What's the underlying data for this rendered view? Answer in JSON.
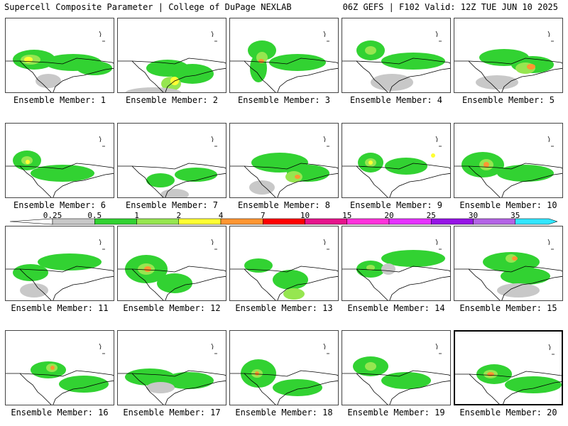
{
  "header": {
    "left": "Supercell Composite Parameter | College of DuPage NEXLAB",
    "right": "06Z GEFS | F102 Valid: 12Z TUE JUN 10 2025"
  },
  "members": [
    {
      "label": "Ensemble Member: 1"
    },
    {
      "label": "Ensemble Member: 2"
    },
    {
      "label": "Ensemble Member: 3"
    },
    {
      "label": "Ensemble Member: 4"
    },
    {
      "label": "Ensemble Member: 5"
    },
    {
      "label": "Ensemble Member: 6"
    },
    {
      "label": "Ensemble Member: 7"
    },
    {
      "label": "Ensemble Member: 8"
    },
    {
      "label": "Ensemble Member: 9"
    },
    {
      "label": "Ensemble Member: 10"
    },
    {
      "label": "Ensemble Member: 11"
    },
    {
      "label": "Ensemble Member: 12"
    },
    {
      "label": "Ensemble Member: 13"
    },
    {
      "label": "Ensemble Member: 14"
    },
    {
      "label": "Ensemble Member: 15"
    },
    {
      "label": "Ensemble Member: 16"
    },
    {
      "label": "Ensemble Member: 17"
    },
    {
      "label": "Ensemble Member: 18"
    },
    {
      "label": "Ensemble Member: 19"
    },
    {
      "label": "Ensemble Member: 20",
      "selected": true
    }
  ],
  "colorbar": {
    "labels": [
      "0.25",
      "0.5",
      "1",
      "2",
      "4",
      "7",
      "10",
      "15",
      "20",
      "25",
      "30",
      "35"
    ],
    "colors": [
      "#c8c8c8",
      "#32d232",
      "#96e650",
      "#ffff32",
      "#ff9632",
      "#ff0000",
      "#e6148c",
      "#ff32dc",
      "#e632ff",
      "#9614e6",
      "#b464e6",
      "#32e6ff"
    ]
  }
}
